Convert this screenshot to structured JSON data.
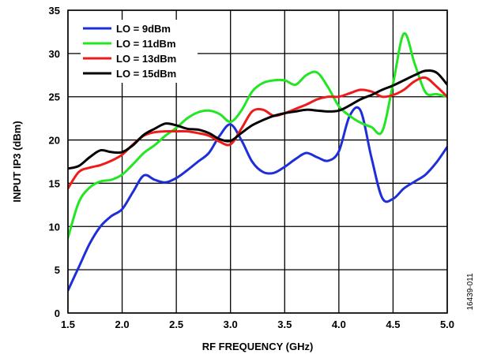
{
  "chart_data": {
    "type": "line",
    "title": "",
    "xlabel": "RF FREQUENCY (GHz)",
    "ylabel": "INPUT IP3 (dBm)",
    "xlim": [
      1.5,
      5.0
    ],
    "ylim": [
      0,
      35
    ],
    "xticks": [
      "1.5",
      "2.0",
      "2.5",
      "3.0",
      "3.5",
      "4.0",
      "4.5",
      "5.0"
    ],
    "yticks": [
      "0",
      "5",
      "10",
      "15",
      "20",
      "25",
      "30",
      "35"
    ],
    "grid": true,
    "legend_position": "top-left",
    "series": [
      {
        "name": "LO = 9dBm",
        "color": "#1f2fd8",
        "x": [
          1.5,
          1.6,
          1.7,
          1.8,
          1.9,
          2.0,
          2.1,
          2.2,
          2.3,
          2.4,
          2.5,
          2.6,
          2.7,
          2.8,
          2.9,
          3.0,
          3.1,
          3.2,
          3.3,
          3.4,
          3.5,
          3.6,
          3.7,
          3.8,
          3.9,
          4.0,
          4.1,
          4.2,
          4.3,
          4.4,
          4.5,
          4.6,
          4.7,
          4.8,
          4.9,
          5.0
        ],
        "y": [
          2.6,
          5.3,
          8.0,
          10.0,
          11.2,
          12.0,
          14.0,
          15.9,
          15.4,
          15.1,
          15.6,
          16.5,
          17.5,
          18.5,
          20.5,
          21.8,
          20.0,
          17.5,
          16.3,
          16.2,
          16.9,
          17.8,
          18.5,
          18.0,
          17.6,
          18.7,
          22.8,
          23.4,
          18.0,
          13.3,
          13.2,
          14.4,
          15.2,
          16.0,
          17.4,
          19.2
        ]
      },
      {
        "name": "LO = 11dBm",
        "color": "#22e622",
        "x": [
          1.5,
          1.6,
          1.7,
          1.8,
          1.9,
          2.0,
          2.1,
          2.2,
          2.3,
          2.4,
          2.5,
          2.6,
          2.7,
          2.8,
          2.9,
          3.0,
          3.1,
          3.2,
          3.3,
          3.4,
          3.5,
          3.6,
          3.7,
          3.8,
          3.9,
          4.0,
          4.1,
          4.2,
          4.3,
          4.4,
          4.5,
          4.6,
          4.7,
          4.8,
          4.9,
          5.0
        ],
        "y": [
          8.7,
          12.8,
          14.5,
          15.2,
          15.4,
          16.0,
          17.2,
          18.5,
          19.4,
          20.5,
          21.4,
          22.5,
          23.2,
          23.4,
          23.0,
          22.1,
          23.4,
          25.6,
          26.6,
          26.9,
          26.9,
          26.4,
          27.5,
          27.8,
          26.1,
          23.9,
          22.8,
          22.0,
          21.5,
          21.0,
          26.5,
          32.3,
          28.8,
          25.5,
          25.3,
          25.0
        ]
      },
      {
        "name": "LO = 13dBm",
        "color": "#ee1b1b",
        "x": [
          1.5,
          1.6,
          1.7,
          1.8,
          1.9,
          2.0,
          2.1,
          2.2,
          2.3,
          2.4,
          2.5,
          2.6,
          2.7,
          2.8,
          2.9,
          3.0,
          3.1,
          3.2,
          3.3,
          3.4,
          3.5,
          3.6,
          3.7,
          3.8,
          3.9,
          4.0,
          4.1,
          4.2,
          4.3,
          4.4,
          4.5,
          4.6,
          4.7,
          4.8,
          4.9,
          5.0
        ],
        "y": [
          14.4,
          16.3,
          16.8,
          17.1,
          17.6,
          18.3,
          19.5,
          20.5,
          20.9,
          21.0,
          21.0,
          21.0,
          20.8,
          20.5,
          19.8,
          19.5,
          21.3,
          23.3,
          23.5,
          22.8,
          23.1,
          23.6,
          24.1,
          24.7,
          25.0,
          25.0,
          25.4,
          25.8,
          25.6,
          25.0,
          25.2,
          25.8,
          26.8,
          27.2,
          26.2,
          25.0
        ]
      },
      {
        "name": "LO = 15dBm",
        "color": "#000000",
        "x": [
          1.5,
          1.6,
          1.7,
          1.8,
          1.9,
          2.0,
          2.1,
          2.2,
          2.3,
          2.4,
          2.5,
          2.6,
          2.7,
          2.8,
          2.9,
          3.0,
          3.1,
          3.2,
          3.3,
          3.4,
          3.5,
          3.6,
          3.7,
          3.8,
          3.9,
          4.0,
          4.1,
          4.2,
          4.3,
          4.4,
          4.5,
          4.6,
          4.7,
          4.8,
          4.9,
          5.0
        ],
        "y": [
          16.7,
          17.0,
          18.0,
          18.8,
          18.6,
          18.6,
          19.4,
          20.6,
          21.3,
          21.9,
          21.7,
          21.3,
          21.2,
          20.8,
          20.1,
          19.9,
          20.8,
          21.7,
          22.3,
          22.8,
          23.1,
          23.3,
          23.5,
          23.4,
          23.3,
          23.4,
          24.0,
          24.7,
          25.2,
          25.8,
          26.3,
          26.9,
          27.5,
          28.0,
          27.8,
          26.4
        ]
      }
    ],
    "figure_id": "16439-011"
  }
}
